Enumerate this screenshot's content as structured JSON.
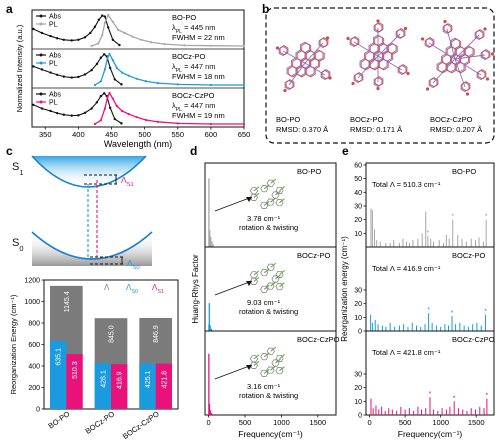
{
  "panels": {
    "a": "a",
    "b": "b",
    "c": "c",
    "d": "d",
    "e": "e"
  },
  "colors": {
    "black": "#111111",
    "gray": "#a6a6a6",
    "blue": "#1a9be0",
    "pink": "#e8127a",
    "darkgray": "#7b7b7b",
    "struct_purple": "#8a6fc0",
    "struct_red": "#d04a4a",
    "struct_green": "#6ab04c"
  },
  "chart_data": [
    {
      "id": "a",
      "type": "line",
      "xlabel": "Wavelength (nm)",
      "ylabel": "Normalized Intensity (a.u.)",
      "xlim": [
        330,
        650
      ],
      "xticks": [
        350,
        400,
        450,
        500,
        550,
        600,
        650
      ],
      "legend_abs": "Abs",
      "legend_pl": "PL",
      "subplots": [
        {
          "name": "BO-PO",
          "lambda": "λ",
          "lambda_sub": "PL",
          "lambda_val": " = 445 nm",
          "fwhm": "FWHM = 22 nm",
          "pl_color": "gray",
          "abs_x": [
            332,
            345,
            358,
            368,
            378,
            390,
            400,
            410,
            418,
            425,
            431,
            436,
            440,
            445,
            452,
            462
          ],
          "abs_y": [
            0.55,
            0.42,
            0.32,
            0.25,
            0.2,
            0.18,
            0.2,
            0.28,
            0.42,
            0.62,
            0.85,
            0.98,
            0.95,
            0.6,
            0.2,
            0.03
          ],
          "pl_x": [
            420,
            430,
            436,
            440,
            445,
            452,
            460,
            470,
            482,
            495,
            510,
            530,
            560,
            600,
            650
          ],
          "pl_y": [
            0.0,
            0.08,
            0.35,
            0.75,
            1.0,
            0.78,
            0.52,
            0.42,
            0.3,
            0.2,
            0.12,
            0.06,
            0.02,
            0.01,
            0.0
          ]
        },
        {
          "name": "BOCz-PO",
          "lambda": "λ",
          "lambda_sub": "PL",
          "lambda_val": " = 447 nm",
          "fwhm": "FWHM = 18 nm",
          "pl_color": "blue",
          "abs_x": [
            332,
            345,
            358,
            368,
            378,
            390,
            400,
            410,
            420,
            428,
            434,
            439,
            443,
            448,
            455,
            465
          ],
          "abs_y": [
            0.6,
            0.5,
            0.4,
            0.33,
            0.27,
            0.24,
            0.26,
            0.34,
            0.48,
            0.68,
            0.88,
            0.99,
            0.92,
            0.55,
            0.18,
            0.02
          ],
          "pl_x": [
            425,
            434,
            440,
            444,
            447,
            452,
            458,
            466,
            476,
            488,
            502,
            520,
            550,
            600,
            650
          ],
          "pl_y": [
            0.0,
            0.12,
            0.5,
            0.88,
            1.0,
            0.8,
            0.55,
            0.4,
            0.3,
            0.2,
            0.12,
            0.06,
            0.02,
            0.0,
            0.0
          ]
        },
        {
          "name": "BOCz-CzPO",
          "lambda": "λ",
          "lambda_sub": "PL",
          "lambda_val": " = 447 nm",
          "fwhm": "FWHM = 19 nm",
          "pl_color": "pink",
          "abs_x": [
            332,
            345,
            358,
            368,
            378,
            390,
            400,
            410,
            420,
            428,
            434,
            439,
            443,
            448,
            455,
            465
          ],
          "abs_y": [
            0.62,
            0.5,
            0.42,
            0.35,
            0.3,
            0.27,
            0.28,
            0.36,
            0.5,
            0.7,
            0.9,
            0.99,
            0.9,
            0.52,
            0.16,
            0.02
          ],
          "pl_x": [
            425,
            434,
            440,
            444,
            447,
            452,
            458,
            466,
            476,
            488,
            502,
            520,
            550,
            600,
            650
          ],
          "pl_y": [
            0.0,
            0.12,
            0.5,
            0.86,
            1.0,
            0.82,
            0.58,
            0.42,
            0.32,
            0.22,
            0.13,
            0.07,
            0.02,
            0.0,
            0.0
          ]
        }
      ]
    },
    {
      "id": "b",
      "type": "structures",
      "items": [
        {
          "name": "BO-PO",
          "rmsd": "RMSD: 0.370 Å"
        },
        {
          "name": "BOCz-PO",
          "rmsd": "RMSD: 0.171 Å"
        },
        {
          "name": "BOCz-CzPO",
          "rmsd": "RMSD: 0.207 Å"
        }
      ]
    },
    {
      "id": "c_diagram",
      "type": "diagram",
      "s1": "S",
      "s1_sub": "1",
      "s0": "S",
      "s0_sub": "0",
      "l1": "Λ",
      "l1_sub": "S1",
      "l0": "Λ",
      "l0_sub": "S0"
    },
    {
      "id": "c_bar",
      "type": "bar",
      "ylabel": "Reorganization Energy  (cm⁻¹)",
      "ylim": [
        0,
        1200
      ],
      "yticks": [
        0,
        200,
        400,
        600,
        800,
        1000,
        1200
      ],
      "categories": [
        "BO-PO",
        "BOCz-PO",
        "BOCz-CzPO"
      ],
      "legend": [
        {
          "sym": "Λ",
          "sub": "",
          "color": "darkgray"
        },
        {
          "sym": "Λ",
          "sub": "S0",
          "color": "blue"
        },
        {
          "sym": "Λ",
          "sub": "S1",
          "color": "pink"
        }
      ],
      "total": [
        1145.4,
        845.0,
        846.9
      ],
      "total_labels": [
        "1145.4",
        "845.0",
        "846.9"
      ],
      "s0": [
        635.1,
        428.1,
        425.1
      ],
      "s0_labels": [
        "635.1",
        "428.1",
        "425.1"
      ],
      "s1": [
        510.3,
        416.9,
        421.8
      ],
      "s1_labels": [
        "510.3",
        "416.9",
        "421.8"
      ]
    },
    {
      "id": "d",
      "type": "bar",
      "ylabel": "Huang-Rhys Factor",
      "xlabel": "Frequency(cm⁻¹)",
      "xlim": [
        -50,
        1750
      ],
      "xticks": [
        0,
        500,
        1000,
        1500
      ],
      "subplots": [
        {
          "name": "BO-PO",
          "color": "gray",
          "freq": "3.78 cm⁻¹",
          "desc": "rotation & twisting",
          "ymax": 4.2,
          "x": [
            3.78,
            15,
            28,
            45,
            60
          ],
          "y": [
            3.7,
            0.9,
            0.55,
            0.3,
            0.15
          ]
        },
        {
          "name": "BOCz-PO",
          "color": "blue",
          "freq": "9.03 cm⁻¹",
          "desc": "rotation & twisting",
          "ymax": 4.2,
          "x": [
            4,
            9.03,
            22,
            40
          ],
          "y": [
            0.35,
            1.5,
            0.3,
            0.12
          ]
        },
        {
          "name": "BOCz-CzPO",
          "color": "pink",
          "freq": "3.16 cm⁻¹",
          "desc": "rotation & twisting",
          "ymax": 4.2,
          "x": [
            3.16,
            12,
            25,
            42
          ],
          "y": [
            3.3,
            0.6,
            0.25,
            0.1
          ]
        }
      ]
    },
    {
      "id": "e",
      "type": "bar",
      "ylabel": "Reorganization energy (cm⁻¹)",
      "xlabel": "Frequency(cm⁻¹)",
      "xlim": [
        -50,
        1750
      ],
      "xticks": [
        0,
        500,
        1000,
        1500
      ],
      "ylim": [
        0,
        60
      ],
      "yticks": [
        0,
        10,
        20,
        30,
        40,
        50,
        60
      ],
      "subplots": [
        {
          "name": "BO-PO",
          "color": "gray",
          "total_label": "Total Λ = 510.3 cm⁻¹",
          "x": [
            20,
            40,
            70,
            100,
            150,
            230,
            290,
            340,
            420,
            470,
            520,
            560,
            610,
            680,
            740,
            790,
            820,
            860,
            900,
            980,
            1040,
            1080,
            1120,
            1170,
            1240,
            1300,
            1360,
            1430,
            1490,
            1540,
            1600,
            1640
          ],
          "y": [
            28,
            27,
            13,
            5,
            4,
            3,
            3,
            5,
            3,
            6,
            4,
            3,
            5,
            6,
            10,
            26,
            8,
            6,
            4,
            5,
            3,
            9,
            6,
            20,
            9,
            6,
            4,
            6,
            5,
            7,
            4,
            20
          ],
          "stars": [
            820,
            1170,
            1640
          ]
        },
        {
          "name": "BOCz-PO",
          "color": "blue",
          "total_label": "Total Λ = 416.9 cm⁻¹",
          "x": [
            15,
            40,
            80,
            120,
            180,
            230,
            290,
            350,
            420,
            480,
            540,
            600,
            660,
            720,
            780,
            830,
            880,
            940,
            1000,
            1060,
            1110,
            1160,
            1210,
            1270,
            1330,
            1390,
            1450,
            1510,
            1570,
            1630
          ],
          "y": [
            12,
            6,
            8,
            5,
            4,
            3,
            6,
            3,
            4,
            5,
            3,
            6,
            4,
            3,
            5,
            13,
            6,
            4,
            3,
            5,
            4,
            11,
            5,
            6,
            4,
            3,
            5,
            6,
            4,
            12
          ],
          "stars": [
            830,
            1160,
            1630
          ]
        },
        {
          "name": "BOCz-CzPO",
          "color": "pink",
          "total_label": "Total Λ = 421.8 cm⁻¹",
          "x": [
            20,
            50,
            90,
            130,
            170,
            220,
            270,
            320,
            380,
            440,
            500,
            560,
            620,
            680,
            730,
            790,
            850,
            900,
            960,
            1020,
            1080,
            1130,
            1190,
            1250,
            1310,
            1370,
            1430,
            1490,
            1550,
            1610,
            1650
          ],
          "y": [
            12,
            5,
            7,
            4,
            6,
            3,
            5,
            4,
            3,
            6,
            4,
            5,
            3,
            6,
            4,
            5,
            13,
            4,
            3,
            5,
            4,
            6,
            10,
            5,
            4,
            3,
            5,
            4,
            6,
            5,
            12
          ],
          "stars": [
            850,
            1190,
            1650
          ]
        }
      ]
    }
  ]
}
